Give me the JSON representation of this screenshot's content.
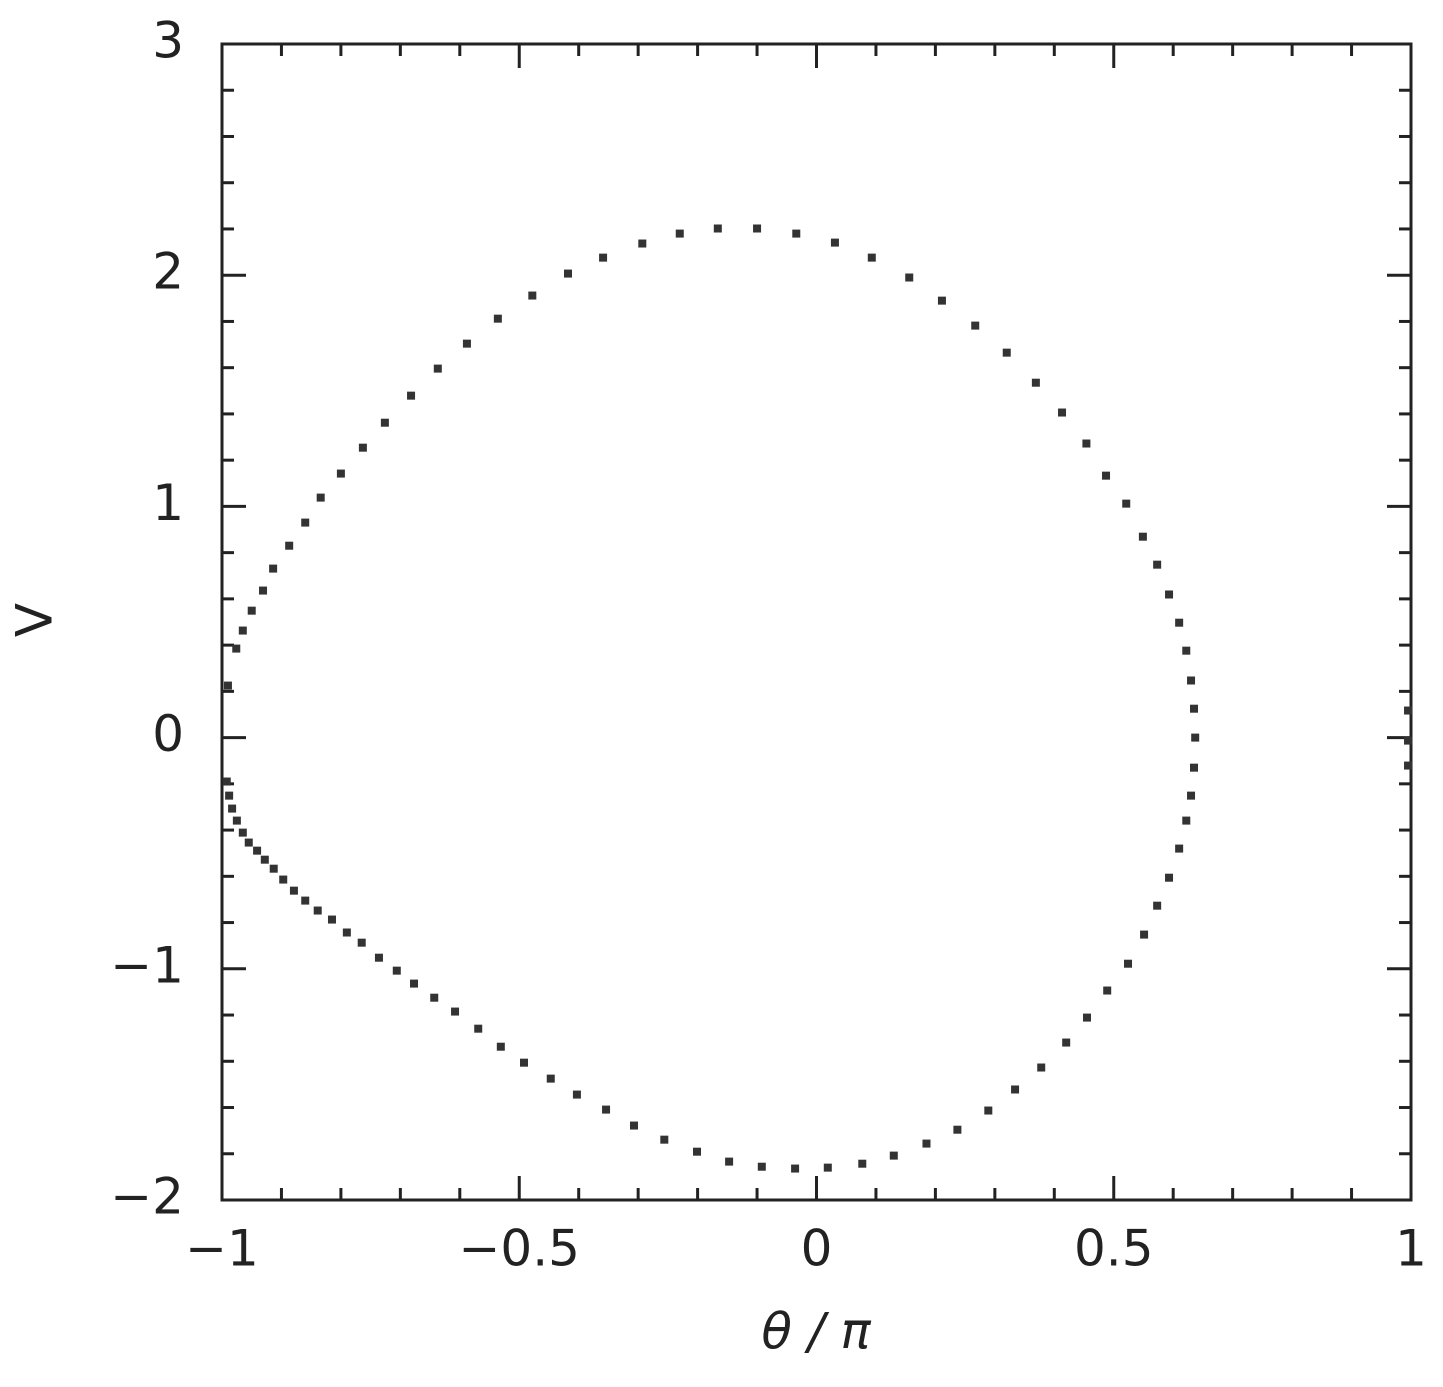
{
  "chart_data": {
    "type": "scatter",
    "xlabel": "θ / π",
    "ylabel": "V",
    "xlim": [
      -1,
      1
    ],
    "ylim": [
      -2,
      3
    ],
    "xticks": [
      {
        "value": -1,
        "label": "−1"
      },
      {
        "value": -0.5,
        "label": "−0.5"
      },
      0,
      0.5,
      1
    ],
    "yticks": [
      {
        "value": -2,
        "label": "−2"
      },
      {
        "value": -1,
        "label": "−1"
      },
      0,
      1,
      2,
      3
    ],
    "x_minor_ticks": [
      -0.9,
      -0.8,
      -0.7,
      -0.6,
      -0.4,
      -0.3,
      -0.2,
      -0.1,
      0.1,
      0.2,
      0.3,
      0.4,
      0.6,
      0.7,
      0.8,
      0.9
    ],
    "y_minor_ticks": [
      -1.8,
      -1.6,
      -1.4,
      -1.2,
      -0.8,
      -0.6,
      -0.4,
      -0.2,
      0.2,
      0.4,
      0.6,
      0.8,
      1.2,
      1.4,
      1.6,
      1.8,
      2.2,
      2.4,
      2.6,
      2.8
    ],
    "series": [
      {
        "color": "#333333",
        "x": [
          -0.99,
          -0.976,
          -0.965,
          -0.95,
          -0.931,
          -0.914,
          -0.887,
          -0.86,
          -0.834,
          -0.8,
          -0.763,
          -0.726,
          -0.682,
          -0.637,
          -0.588,
          -0.536,
          -0.478,
          -0.418,
          -0.359,
          -0.293,
          -0.23,
          -0.166,
          -0.1,
          -0.034,
          0.031,
          0.093,
          0.156,
          0.211,
          0.267,
          0.32,
          0.369,
          0.413,
          0.454,
          0.487,
          0.521,
          0.549,
          0.573,
          0.593,
          0.61,
          0.622,
          0.63,
          0.635,
          0.637,
          0.635,
          0.63,
          0.622,
          0.61,
          0.593,
          0.573,
          0.551,
          0.524,
          0.489,
          0.455,
          0.42,
          0.378,
          0.334,
          0.289,
          0.237,
          0.185,
          0.13,
          0.077,
          0.019,
          -0.036,
          -0.092,
          -0.147,
          -0.201,
          -0.256,
          -0.307,
          -0.354,
          -0.403,
          -0.447,
          -0.492,
          -0.531,
          -0.569,
          -0.608,
          -0.643,
          -0.677,
          -0.706,
          -0.736,
          -0.765,
          -0.79,
          -0.815,
          -0.839,
          -0.86,
          -0.879,
          -0.897,
          -0.913,
          -0.928,
          -0.941,
          -0.955,
          -0.965,
          -0.975,
          -0.983,
          -0.988,
          -0.992,
          0.995,
          0.995,
          0.995
        ],
        "values": [
          0.225,
          0.385,
          0.463,
          0.549,
          0.636,
          0.731,
          0.83,
          0.93,
          1.038,
          1.142,
          1.254,
          1.362,
          1.479,
          1.596,
          1.704,
          1.812,
          1.912,
          2.007,
          2.076,
          2.137,
          2.18,
          2.202,
          2.202,
          2.18,
          2.141,
          2.076,
          1.99,
          1.89,
          1.782,
          1.665,
          1.535,
          1.406,
          1.272,
          1.133,
          1.012,
          0.869,
          0.748,
          0.619,
          0.497,
          0.376,
          0.247,
          0.125,
          0.0,
          -0.13,
          -0.251,
          -0.359,
          -0.48,
          -0.606,
          -0.727,
          -0.852,
          -0.978,
          -1.094,
          -1.211,
          -1.319,
          -1.427,
          -1.522,
          -1.613,
          -1.696,
          -1.756,
          -1.808,
          -1.843,
          -1.86,
          -1.864,
          -1.856,
          -1.834,
          -1.791,
          -1.739,
          -1.678,
          -1.609,
          -1.544,
          -1.475,
          -1.406,
          -1.337,
          -1.259,
          -1.185,
          -1.125,
          -1.064,
          -1.008,
          -0.952,
          -0.887,
          -0.843,
          -0.787,
          -0.748,
          -0.705,
          -0.662,
          -0.614,
          -0.567,
          -0.528,
          -0.489,
          -0.454,
          -0.411,
          -0.359,
          -0.307,
          -0.251,
          -0.19,
          0.117,
          -0.013,
          -0.121
        ]
      }
    ]
  }
}
